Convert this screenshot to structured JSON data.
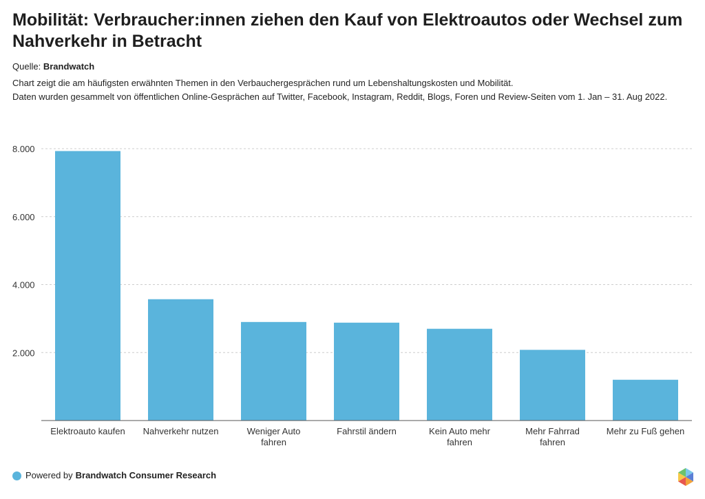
{
  "title": "Mobilität: Verbraucher:innen ziehen den Kauf von Elektroautos oder Wechsel zum Nahverkehr in Betracht",
  "source": {
    "prefix": "Quelle:",
    "name": "Brandwatch"
  },
  "description": [
    "Chart zeigt die am häufigsten erwähnten Themen in den Verbauchergesprächen rund um Lebenshaltungskosten und Mobilität.",
    "Daten wurden gesammelt von öffentlichen Online-Gesprächen auf Twitter, Facebook, Instagram, Reddit, Blogs, Foren und Review-Seiten vom 1. Jan – 31. Aug 2022."
  ],
  "chart_data": {
    "type": "bar",
    "categories": [
      [
        "Elektroauto kaufen"
      ],
      [
        "Nahverkehr nutzen"
      ],
      [
        "Weniger Auto",
        "fahren"
      ],
      [
        "Fahrstil ändern"
      ],
      [
        "Kein Auto mehr",
        "fahren"
      ],
      [
        "Mehr Fahrrad",
        "fahren"
      ],
      [
        "Mehr zu Fuß gehen"
      ]
    ],
    "values": [
      7930,
      3570,
      2900,
      2880,
      2700,
      2080,
      1200
    ],
    "yticks": [
      2000,
      4000,
      6000,
      8000
    ],
    "ytick_labels": [
      "2.000",
      "4.000",
      "6.000",
      "8.000"
    ],
    "ylim": [
      0,
      8000
    ],
    "bar_color": "#5ab4dc",
    "grid": true
  },
  "footer": {
    "prefix": "Powered by",
    "brand": "Brandwatch Consumer Research"
  },
  "colors": {
    "accent": "#5ab4dc",
    "grid": "#cccccc",
    "axis": "#555555"
  }
}
